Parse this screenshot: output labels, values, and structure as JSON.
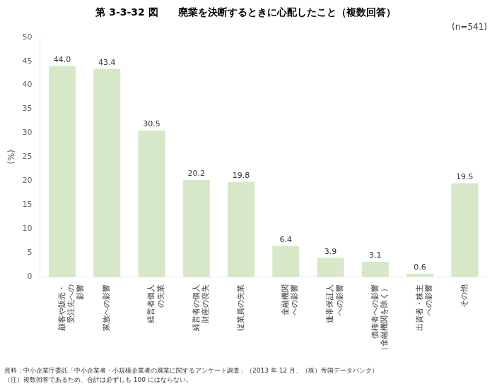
{
  "chart_data": {
    "type": "bar",
    "title": "第 3-3-32 図　　廃業を決断するときに心配したこと（複数回答）",
    "y_label": "(%)",
    "categories": [
      "顧客や販売・\n受注先への\n影響",
      "家族への影響",
      "経営者個人\nの失業",
      "経営者の個人\n財産の喪失",
      "従業員の失業",
      "金融機関\nへの影響",
      "連帯保証人\nへの影響",
      "債権者への影響\n（金融機関を除く）",
      "出資者・株主\nへの影響",
      "その他"
    ],
    "values": [
      44.0,
      43.4,
      30.5,
      20.2,
      19.8,
      6.4,
      3.9,
      3.1,
      0.6,
      19.5
    ],
    "value_labels": [
      "44.0",
      "43.4",
      "30.5",
      "20.2",
      "19.8",
      "6.4",
      "3.9",
      "3.1",
      "0.6",
      "19.5"
    ],
    "data_labels": true,
    "color": "#d6e8c8",
    "ylim": [
      0,
      50
    ],
    "yticks": [
      0,
      5,
      10,
      15,
      20,
      25,
      30,
      35,
      40,
      45,
      50
    ],
    "grid": false,
    "annotations": [
      "(n=541)"
    ],
    "footnotes": [
      "資料：中小企業庁委託「中小企業者・小規模企業者の廃業に関するアンケート調査」（2013 年 12 月、（株）帝国データバンク）",
      "（注）複数回答であるため、合計は必ずしも 100 にはならない。"
    ]
  }
}
